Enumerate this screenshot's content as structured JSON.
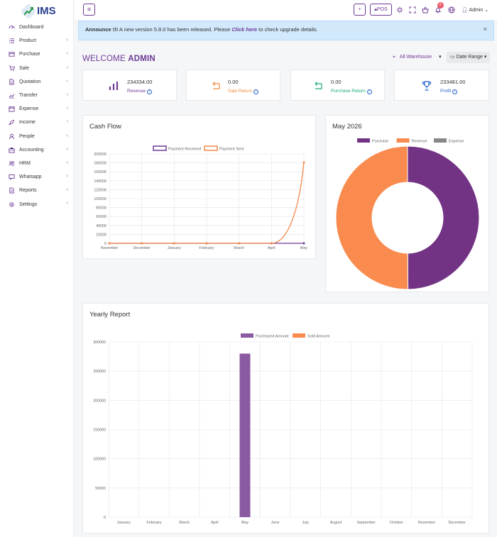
{
  "app": {
    "logo_text": "IMS"
  },
  "sidebar": {
    "items": [
      {
        "label": "Dashboard",
        "icon": "dashboard-icon",
        "arrow": false
      },
      {
        "label": "Product",
        "icon": "list-icon",
        "arrow": true
      },
      {
        "label": "Purchase",
        "icon": "card-icon",
        "arrow": true
      },
      {
        "label": "Sale",
        "icon": "cart-icon",
        "arrow": true
      },
      {
        "label": "Quotation",
        "icon": "document-icon",
        "arrow": true
      },
      {
        "label": "Transfer",
        "icon": "chart-icon",
        "arrow": true
      },
      {
        "label": "Expense",
        "icon": "calendar-icon",
        "arrow": true
      },
      {
        "label": "Income",
        "icon": "rocket-icon",
        "arrow": true
      },
      {
        "label": "People",
        "icon": "person-icon",
        "arrow": true
      },
      {
        "label": "Accounting",
        "icon": "briefcase-icon",
        "arrow": true
      },
      {
        "label": "HRM",
        "icon": "people-icon",
        "arrow": true
      },
      {
        "label": "Whatsapp",
        "icon": "message-icon",
        "arrow": true
      },
      {
        "label": "Reports",
        "icon": "report-icon",
        "arrow": true
      },
      {
        "label": "Settings",
        "icon": "gear-icon",
        "arrow": true
      }
    ]
  },
  "topbar": {
    "menu_glyph": "≡",
    "add_glyph": "+",
    "pos_label": "POS",
    "notification_count": "6",
    "admin_label": "Admin"
  },
  "announcement": {
    "prefix": "Announce !!!",
    "text": " A new version 5.8.0 has been released. Please ",
    "link": "Click here",
    "suffix": " to check upgrade details.",
    "close_glyph": "×"
  },
  "welcome": {
    "prefix": "WELCOME ",
    "name": "ADMIN"
  },
  "filters": {
    "warehouse": "All Warehouse",
    "date_range": "Date Range"
  },
  "cards": [
    {
      "value": "234334.00",
      "label": "Revenue",
      "color": "#6d3a96",
      "icon": "bar-chart-icon"
    },
    {
      "value": "0.00",
      "label": "Sale Return",
      "color": "#f08a3c",
      "icon": "return-arrow-icon"
    },
    {
      "value": "0.00",
      "label": "Purchase Return",
      "color": "#1ea97c",
      "icon": "return-arrow-icon"
    },
    {
      "value": "233481.00",
      "label": "Profit",
      "color": "#2563c9",
      "icon": "trophy-icon"
    }
  ],
  "panels": {
    "cash_flow_title": "Cash Flow",
    "month_title": "May 2026",
    "yearly_title": "Yearly Report"
  },
  "chart_data": [
    {
      "type": "line",
      "categories": [
        "November",
        "December",
        "January",
        "February",
        "March",
        "April",
        "May"
      ],
      "series": [
        {
          "name": "Payment Received",
          "color": "#6d3a96",
          "values": [
            0,
            0,
            0,
            0,
            0,
            0,
            0
          ]
        },
        {
          "name": "Payment Sent",
          "color": "#f5894a",
          "values": [
            0,
            0,
            0,
            0,
            0,
            0,
            181000
          ]
        }
      ],
      "ylim": [
        0,
        200000
      ],
      "yticks": [
        0,
        20000,
        40000,
        60000,
        80000,
        100000,
        120000,
        140000,
        160000,
        180000,
        200000
      ],
      "grid": true,
      "legend": "top"
    },
    {
      "type": "pie",
      "labels": [
        "Purchase",
        "Revenue",
        "Expense"
      ],
      "values": [
        233481,
        234334,
        0
      ],
      "colors": [
        "#733385",
        "#f98b4e",
        "#868686"
      ],
      "legend": "top"
    },
    {
      "type": "bar",
      "categories": [
        "January",
        "February",
        "March",
        "April",
        "May",
        "June",
        "July",
        "August",
        "September",
        "October",
        "November",
        "December"
      ],
      "series": [
        {
          "name": "Purchased Amount",
          "color": "#8a5aa0",
          "values": [
            0,
            0,
            0,
            0,
            280000,
            0,
            0,
            0,
            0,
            0,
            0,
            0
          ]
        },
        {
          "name": "Sold Amount",
          "color": "#f98b4e",
          "values": [
            0,
            0,
            0,
            0,
            0,
            0,
            0,
            0,
            0,
            0,
            0,
            0
          ]
        }
      ],
      "ylim": [
        0,
        300000
      ],
      "yticks": [
        0,
        50000,
        100000,
        150000,
        200000,
        250000,
        300000
      ],
      "grid": true,
      "legend": "top"
    }
  ]
}
